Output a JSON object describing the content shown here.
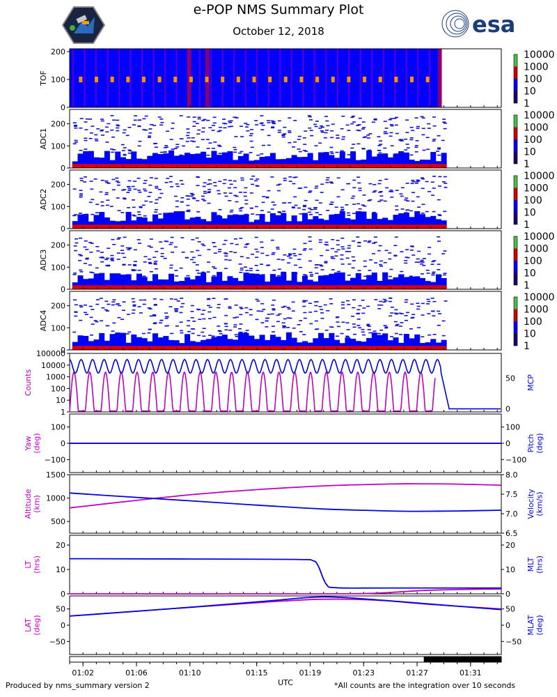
{
  "header": {
    "title": "e-POP NMS Summary Plot",
    "date": "October 12, 2018",
    "logo_right_text": "esa",
    "logo_left": "satellite-mission-patch"
  },
  "footer": {
    "left": "Produced by nms_summary version 2",
    "right": "*All counts are the integration over 10 seconds"
  },
  "colors": {
    "bg_blue": "#0000ff",
    "hot_red": "#dd0000",
    "magenta": "#c000c0",
    "line_blue": "#0000e0",
    "colorbar": [
      "#1e0070",
      "#0000ff",
      "#d00000",
      "#48c048"
    ]
  },
  "chart_data": {
    "type": "multi-panel",
    "x_label": "UTC",
    "x_range": [
      1.0,
      33.3
    ],
    "x_ticks": [
      {
        "v": 2,
        "label": "01:02"
      },
      {
        "v": 6,
        "label": "01:06"
      },
      {
        "v": 10,
        "label": "01:10"
      },
      {
        "v": 15,
        "label": "01:15"
      },
      {
        "v": 19,
        "label": "01:19"
      },
      {
        "v": 23,
        "label": "01:23"
      },
      {
        "v": 27,
        "label": "01:27"
      },
      {
        "v": 31,
        "label": "01:31"
      }
    ],
    "data_end": 28.8,
    "eclipse_bar": [
      27.5,
      33.3
    ],
    "spectrograms": [
      {
        "ylabel": "TOF",
        "ylim": [
          0,
          210
        ],
        "yticks": [
          0,
          100,
          200
        ]
      },
      {
        "ylabel": "ADC1",
        "ylim": [
          0,
          265
        ],
        "yticks": [
          0,
          100,
          200
        ]
      },
      {
        "ylabel": "ADC2",
        "ylim": [
          0,
          265
        ],
        "yticks": [
          0,
          100,
          200
        ]
      },
      {
        "ylabel": "ADC3",
        "ylim": [
          0,
          265
        ],
        "yticks": [
          0,
          100,
          200
        ]
      },
      {
        "ylabel": "ADC4",
        "ylim": [
          0,
          265
        ],
        "yticks": [
          0,
          100,
          200
        ]
      }
    ],
    "colorbar_ticks": [
      "10000",
      "1000",
      "100",
      "10",
      "1"
    ],
    "lines": [
      {
        "ylabel_left": "Counts",
        "ylabel_right": "MCP",
        "yticks_left": [
          "100000",
          "10000",
          "1000",
          "100",
          "10",
          "1"
        ],
        "yticks_right": [
          {
            "v": 50,
            "label": "50"
          },
          {
            "v": 0,
            "label": "0"
          }
        ],
        "right_range": [
          -5,
          90
        ],
        "series": [
          {
            "name": "Counts",
            "axis": "left-log",
            "period": 1.18,
            "peak": 4000,
            "valley": 1
          },
          {
            "name": "MCP",
            "axis": "right",
            "high": 80,
            "low": 58,
            "after_off": 0
          }
        ]
      },
      {
        "ylabel_left": "Yaw\n(deg)",
        "ylabel_right": "Pitch\n(deg)",
        "yticks_left": [
          {
            "v": 100,
            "label": "100"
          },
          {
            "v": 0,
            "label": "0"
          },
          {
            "v": -100,
            "label": "−100"
          }
        ],
        "yticks_right": [
          {
            "v": 100,
            "label": "100"
          },
          {
            "v": 0,
            "label": "0"
          },
          {
            "v": -100,
            "label": "−100"
          }
        ],
        "range": [
          -180,
          180
        ],
        "series": [
          {
            "name": "Yaw",
            "value": 0
          },
          {
            "name": "Pitch",
            "value": 0
          }
        ]
      },
      {
        "ylabel_left": "Altitude\n(km)",
        "ylabel_right": "Velocity\n(km/s)",
        "yticks_left": [
          {
            "v": 1500,
            "label": "1500"
          },
          {
            "v": 1000,
            "label": "1000"
          },
          {
            "v": 500,
            "label": "500"
          }
        ],
        "yticks_right": [
          {
            "v": 8.0,
            "label": "8.0"
          },
          {
            "v": 7.5,
            "label": "7.5"
          },
          {
            "v": 7.0,
            "label": "7.0"
          },
          {
            "v": 6.5,
            "label": "6.5"
          }
        ],
        "left_range": [
          250,
          1500
        ],
        "right_range": [
          6.5,
          8.0
        ],
        "series": [
          {
            "name": "Altitude",
            "x": [
              1,
              5,
              10,
              15,
              20,
              25,
              27,
              30,
              33.3
            ],
            "y": [
              790,
              920,
              1070,
              1180,
              1260,
              1300,
              1305,
              1298,
              1275
            ]
          },
          {
            "name": "Velocity",
            "x": [
              1,
              5,
              10,
              15,
              20,
              25,
              27,
              30,
              33.3
            ],
            "y": [
              7.53,
              7.44,
              7.33,
              7.22,
              7.12,
              7.07,
              7.06,
              7.07,
              7.09
            ]
          }
        ]
      },
      {
        "ylabel_left": "LT\n(hrs)",
        "ylabel_right": "MLT\n(hrs)",
        "yticks_left": [
          {
            "v": 20,
            "label": "20"
          },
          {
            "v": 10,
            "label": "10"
          },
          {
            "v": 0,
            "label": "0"
          }
        ],
        "yticks_right": [
          {
            "v": 20,
            "label": "20"
          },
          {
            "v": 10,
            "label": "10"
          },
          {
            "v": 0,
            "label": "0"
          }
        ],
        "range": [
          0,
          24
        ],
        "series": [
          {
            "name": "LT",
            "x": [
              1,
              20,
              24,
              28,
              33.3
            ],
            "y": [
              0,
              0,
              0.3,
              1.5,
              2.0
            ]
          },
          {
            "name": "MLT",
            "x": [
              1,
              10,
              18,
              19.2,
              19.6,
              20.2,
              21,
              25,
              33.3
            ],
            "y": [
              14.4,
              14.3,
              14.1,
              13.6,
              11.5,
              4.0,
              2.5,
              2.4,
              2.4
            ]
          }
        ]
      },
      {
        "ylabel_left": "LAT\n(deg)",
        "ylabel_right": "MLAT\n(deg)",
        "yticks_left": [
          {
            "v": 50,
            "label": "50"
          },
          {
            "v": 0,
            "label": "0"
          },
          {
            "v": -50,
            "label": "−50"
          }
        ],
        "yticks_right": [
          {
            "v": 50,
            "label": "50"
          },
          {
            "v": 0,
            "label": "0"
          },
          {
            "v": -50,
            "label": "−50"
          }
        ],
        "range": [
          -90,
          90
        ],
        "series": [
          {
            "name": "LAT",
            "x": [
              1,
              10,
              16,
              20,
              24,
              28,
              33.3
            ],
            "y": [
              28,
              55,
              72,
              80,
              77,
              64,
              50
            ]
          },
          {
            "name": "MLAT",
            "x": [
              1,
              10,
              16,
              20,
              24,
              28,
              33.3
            ],
            "y": [
              28,
              55,
              75,
              87,
              78,
              65,
              48
            ]
          }
        ]
      }
    ]
  }
}
